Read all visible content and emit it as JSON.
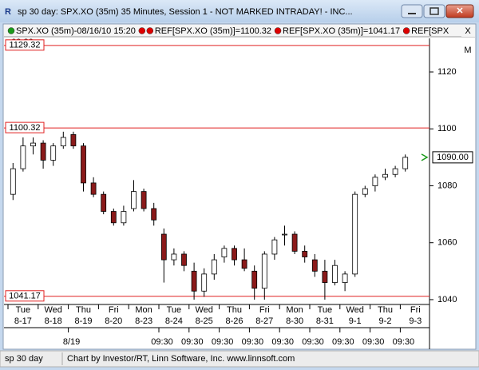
{
  "window": {
    "title": "sp 30 day: SPX.XO (35m) 35 Minutes, Session 1 - NOT MARKED INTRADAY! - INC...",
    "legend_close": "X",
    "corner_label": "M",
    "status": {
      "left": "sp 30 day",
      "right": "Chart by Investor/RT, Linn Software, Inc. www.linnsoft.com"
    }
  },
  "chart_data": {
    "type": "candlestick",
    "legend": [
      {
        "text": "SPX.XO (35m)-08/16/10 15:20",
        "color": "#1a9a1a"
      },
      {
        "text": "REF[SPX.XO (35m)]=1100.32",
        "color": "#dd0000"
      },
      {
        "text": "REF[SPX.XO (35m)]=1041.17",
        "color": "#dd0000"
      },
      {
        "text": "REF[SPX",
        "color": "#dd0000"
      }
    ],
    "weekdays": [
      "Tue",
      "Wed",
      "Thu",
      "Fri",
      "Mon",
      "Tue",
      "Wed",
      "Thu",
      "Fri",
      "Mon",
      "Tue",
      "Wed",
      "Thu",
      "Fri"
    ],
    "dates": [
      "8-17",
      "8-18",
      "8-19",
      "8-20",
      "8-23",
      "8-24",
      "8-25",
      "8-26",
      "8-27",
      "8-30",
      "8-31",
      "9-1",
      "9-2",
      "9-3"
    ],
    "times": [
      null,
      null,
      "8/19",
      null,
      null,
      "09:30",
      "09:30",
      "09:30",
      "09:30",
      "09:30",
      "09:30",
      "09:30",
      "09:30",
      "09:30"
    ],
    "top_time": "09:30",
    "open": [
      1077,
      1086,
      1094,
      1095,
      1089,
      1094,
      1098,
      1094,
      1081,
      1077,
      1071,
      1067,
      1072,
      1078,
      1072,
      1063,
      1054,
      1056,
      1050,
      1043,
      1049,
      1055,
      1058,
      1054,
      1050,
      1044,
      1056,
      1063,
      1063,
      1057,
      1054,
      1050,
      1046,
      1046,
      1049,
      1077,
      1080,
      1083,
      1084,
      1086
    ],
    "high": [
      1088,
      1097,
      1097,
      1096,
      1095,
      1099,
      1099,
      1095,
      1083,
      1078,
      1072,
      1073,
      1082,
      1079,
      1074,
      1065,
      1058,
      1057,
      1053,
      1051,
      1056,
      1059,
      1059,
      1058,
      1052,
      1057,
      1062,
      1066,
      1064,
      1059,
      1056,
      1054,
      1054,
      1050,
      1078,
      1080,
      1084,
      1086,
      1087,
      1091
    ],
    "low": [
      1075,
      1085,
      1091,
      1086,
      1087,
      1093,
      1093,
      1078,
      1076,
      1070,
      1066,
      1066,
      1071,
      1071,
      1066,
      1046,
      1052,
      1050,
      1040,
      1041,
      1047,
      1053,
      1052,
      1050,
      1040,
      1040,
      1054,
      1059,
      1056,
      1053,
      1048,
      1040,
      1045,
      1043,
      1048,
      1076,
      1078,
      1082,
      1083,
      1085
    ],
    "close": [
      1086,
      1094,
      1095,
      1089,
      1094,
      1097,
      1094,
      1081,
      1077,
      1071,
      1067,
      1071,
      1078,
      1072,
      1068,
      1054,
      1056,
      1052,
      1043,
      1049,
      1054,
      1058,
      1054,
      1051,
      1044,
      1056,
      1061,
      1063,
      1057,
      1055,
      1050,
      1046,
      1052,
      1049,
      1077,
      1079,
      1083,
      1084,
      1086,
      1090
    ],
    "up_color": "#ffffff",
    "down_color": "#8b1a1a",
    "ylim": [
      1038.3,
      1131.8
    ],
    "yticks": [
      1040,
      1060,
      1080,
      1100,
      1120
    ],
    "refs": [
      1129.32,
      1100.32,
      1041.17
    ],
    "ref_color": "#e02020",
    "last": {
      "value": 1090,
      "label": "1090.00"
    }
  }
}
